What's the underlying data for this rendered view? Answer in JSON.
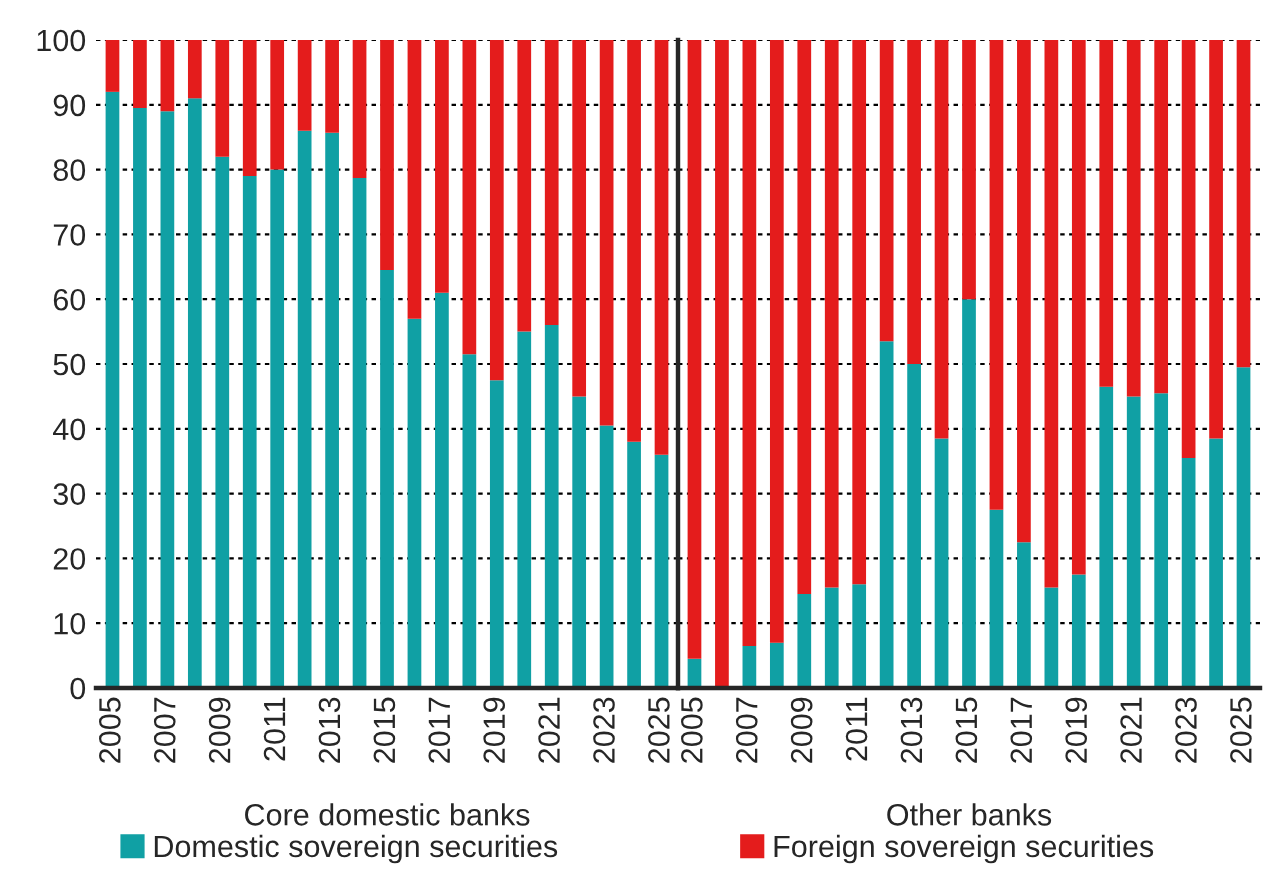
{
  "chart_data": [
    {
      "type": "bar",
      "stacked": true,
      "xlabel": "Core domestic banks",
      "categories": [
        "2005",
        null,
        "2007",
        null,
        "2009",
        null,
        "2011",
        null,
        "2013",
        null,
        "2015",
        null,
        "2017",
        null,
        "2019",
        null,
        "2021",
        null,
        "2023",
        null,
        "2025"
      ],
      "series": [
        {
          "name": "Domestic sovereign securities",
          "color": "#10a0a4",
          "values": [
            92,
            89.5,
            89,
            91,
            82,
            79,
            80,
            86,
            85.7,
            78.7,
            64.5,
            57,
            61,
            51.5,
            47.5,
            55,
            56,
            45,
            40.5,
            38,
            36
          ]
        },
        {
          "name": "Foreign sovereign securities",
          "color": "#e41c1c",
          "values": [
            8,
            10.5,
            11,
            9,
            18,
            21,
            20,
            14,
            14.3,
            21.3,
            35.5,
            43,
            39,
            48.5,
            52.5,
            45,
            44,
            55,
            59.5,
            62,
            64
          ]
        }
      ],
      "ylim": [
        0,
        100
      ],
      "yticks": [
        0,
        10,
        20,
        30,
        40,
        50,
        60,
        70,
        80,
        90,
        100
      ],
      "grid": "y",
      "legend": "bottom"
    },
    {
      "type": "bar",
      "stacked": true,
      "xlabel": "Other banks",
      "categories": [
        "2005",
        null,
        "2007",
        null,
        "2009",
        null,
        "2011",
        null,
        "2013",
        null,
        "2015",
        null,
        "2017",
        null,
        "2019",
        null,
        "2021",
        null,
        "2023",
        null,
        "2025"
      ],
      "series": [
        {
          "color": "#10a0a4",
          "values": [
            4.5,
            0,
            6.5,
            7,
            14.5,
            15.5,
            16,
            53.5,
            50,
            38.5,
            60,
            27.5,
            22.5,
            15.5,
            17.5,
            46.5,
            45,
            45.5,
            35.5,
            38.5,
            49.5
          ]
        },
        {
          "color": "#e41c1c",
          "values": [
            95.5,
            100,
            93.5,
            93,
            85.5,
            84.5,
            84,
            46.5,
            50,
            61.5,
            40,
            72.5,
            77.5,
            84.5,
            82.5,
            53.5,
            55,
            54.5,
            64.5,
            61.5,
            50.5
          ]
        }
      ],
      "ylim": [
        0,
        100
      ],
      "yticks": [
        0,
        10,
        20,
        30,
        40,
        50,
        60,
        70,
        80,
        90,
        100
      ],
      "grid": "y",
      "tick_labels": "x"
    }
  ]
}
